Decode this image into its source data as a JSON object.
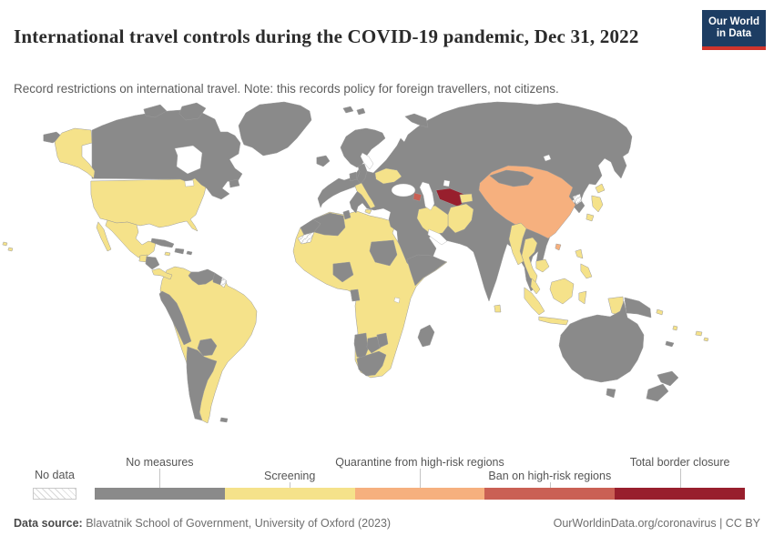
{
  "header": {
    "title": "International travel controls during the COVID-19 pandemic, Dec 31, 2022",
    "subtitle": "Record restrictions on international travel. Note: this records policy for foreign travellers, not citizens.",
    "logo_line1": "Our World",
    "logo_line2": "in Data",
    "logo_bg": "#1d3d63",
    "logo_accent": "#d0342c"
  },
  "legend": {
    "no_data_label": "No data",
    "categories": [
      {
        "id": "no_measures",
        "label": "No measures",
        "color": "#8a8a8a",
        "row": "top"
      },
      {
        "id": "screening",
        "label": "Screening",
        "color": "#f5e28a",
        "row": "bottom"
      },
      {
        "id": "quarantine",
        "label": "Quarantine from high-risk regions",
        "color": "#f6b07e",
        "row": "top"
      },
      {
        "id": "ban",
        "label": "Ban on high-risk regions",
        "color": "#ca6054",
        "row": "bottom"
      },
      {
        "id": "total_closure",
        "label": "Total border closure",
        "color": "#981f2d",
        "row": "top"
      }
    ]
  },
  "map": {
    "no_data_id": "no_data",
    "no_data_pattern": "hatch",
    "countries": {
      "chukotka-russia": "no_measures",
      "alaska": "screening",
      "hawaii-1": "screening",
      "hawaii-2": "screening",
      "canada": "no_measures",
      "arctic-islands-1": "no_measures",
      "arctic-islands-2": "no_measures",
      "newfoundland": "no_measures",
      "greenland": "no_measures",
      "usa": "screening",
      "mexico": "screening",
      "baja-mexico": "screening",
      "guatemala": "screening",
      "honduras-nicaragua": "no_measures",
      "costa-rica-panama": "screening",
      "cuba": "no_measures",
      "hispaniola": "no_measures",
      "jamaica": "screening",
      "puerto-rico": "no_measures",
      "south-america": "screening",
      "venezuela": "no_measures",
      "guyana-suriname": "no_measures",
      "french-guiana": "no_data",
      "ecuador-peru": "no_measures",
      "paraguay": "no_measures",
      "argentina": "no_measures",
      "falkland-islands": "no_measures",
      "iceland": "no_measures",
      "great-britain": "no_measures",
      "ireland": "no_measures",
      "scandinavia": "no_measures",
      "svalbard-1": "no_measures",
      "svalbard-2": "no_measures",
      "novaya-zemlya": "no_measures",
      "eurasia": "no_measures",
      "italy": "screening",
      "sicily": "screening",
      "ukraine": "screening",
      "azerbaijan": "ban",
      "turkmenistan": "total_closure",
      "kyrgyzstan-tajikistan": "screening",
      "afghanistan-pakistan": "screening",
      "iran": "screening",
      "sri-lanka": "screening",
      "china": "quarantine",
      "taiwan": "quarantine",
      "mongolia": "no_measures",
      "north-korea": "no_data",
      "japan-1": "screening",
      "japan-2": "screening",
      "japan-3": "screening",
      "myanmar": "screening",
      "thailand": "screening",
      "cambodia": "screening",
      "malaysia": "screening",
      "sumatra-indonesia": "screening",
      "java-indonesia": "screening",
      "borneo": "screening",
      "sulawesi-indonesia": "screening",
      "west-new-guinea": "screening",
      "papua-new-guinea": "no_measures",
      "solomon-islands": "screening",
      "vanuatu": "screening",
      "philippines-1": "screening",
      "philippines-2": "screening",
      "africa": "screening",
      "morocco": "no_measures",
      "western-sahara": "no_data",
      "algeria": "no_measures",
      "tunisia": "no_measures",
      "nigeria": "no_measures",
      "sudan": "no_measures",
      "somalia": "no_measures",
      "gabon": "no_measures",
      "namibia": "no_measures",
      "botswana": "no_measures",
      "zimbabwe": "no_measures",
      "south-africa": "no_measures",
      "madagascar": "no_measures",
      "australia": "no_measures",
      "tasmania": "no_measures",
      "new-zealand-north": "no_measures",
      "new-zealand-south": "no_measures",
      "new-caledonia": "no_measures",
      "fiji-1": "screening",
      "fiji-2": "screening"
    }
  },
  "footer": {
    "source_label": "Data source:",
    "source_text": "Blavatnik School of Government, University of Oxford (2023)",
    "credit": "OurWorldinData.org/coronavirus | CC BY"
  }
}
